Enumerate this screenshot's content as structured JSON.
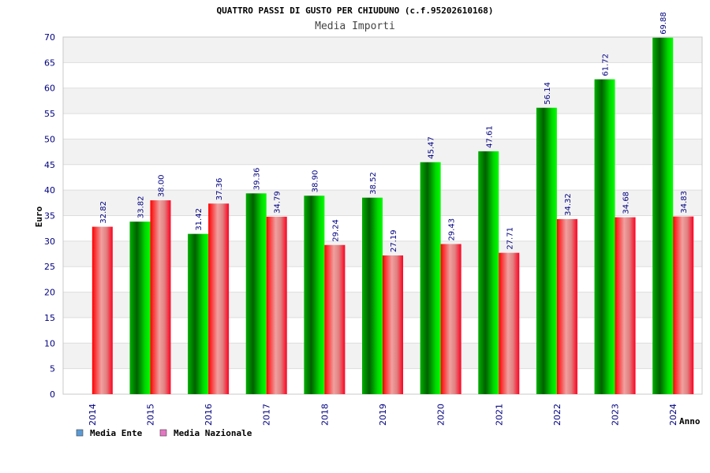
{
  "chart_data": {
    "type": "bar",
    "title": "QUATTRO PASSI DI GUSTO PER CHIUDUNO (c.f.95202610168)",
    "subtitle": "Media Importi",
    "xlabel": "Anno",
    "ylabel": "Euro",
    "ylim": [
      0,
      70
    ],
    "yticks": [
      "0",
      "5",
      "10",
      "15",
      "20",
      "25",
      "30",
      "35",
      "40",
      "45",
      "50",
      "55",
      "60",
      "65",
      "70"
    ],
    "grid": true,
    "legend_position": "bottom-left",
    "categories": [
      "2014",
      "2015",
      "2016",
      "2017",
      "2018",
      "2019",
      "2020",
      "2021",
      "2022",
      "2023",
      "2024"
    ],
    "series": [
      {
        "name": "Media Ente",
        "color": "#00c000",
        "legend_color": "#5b9bd5",
        "values": [
          null,
          33.82,
          31.42,
          39.36,
          38.9,
          38.52,
          45.47,
          47.61,
          56.14,
          61.72,
          69.88
        ],
        "labels": [
          "",
          "33.82",
          "31.42",
          "39.36",
          "38.90",
          "38.52",
          "45.47",
          "47.61",
          "56.14",
          "61.72",
          "69.88"
        ]
      },
      {
        "name": "Media Nazionale",
        "color": "#e00020",
        "legend_color": "#e377c2",
        "values": [
          32.82,
          38.0,
          37.36,
          34.79,
          29.24,
          27.19,
          29.43,
          27.71,
          34.32,
          34.68,
          34.83
        ],
        "labels": [
          "32.82",
          "38.00",
          "37.36",
          "34.79",
          "29.24",
          "27.19",
          "29.43",
          "27.71",
          "34.32",
          "34.68",
          "34.83"
        ]
      }
    ]
  }
}
